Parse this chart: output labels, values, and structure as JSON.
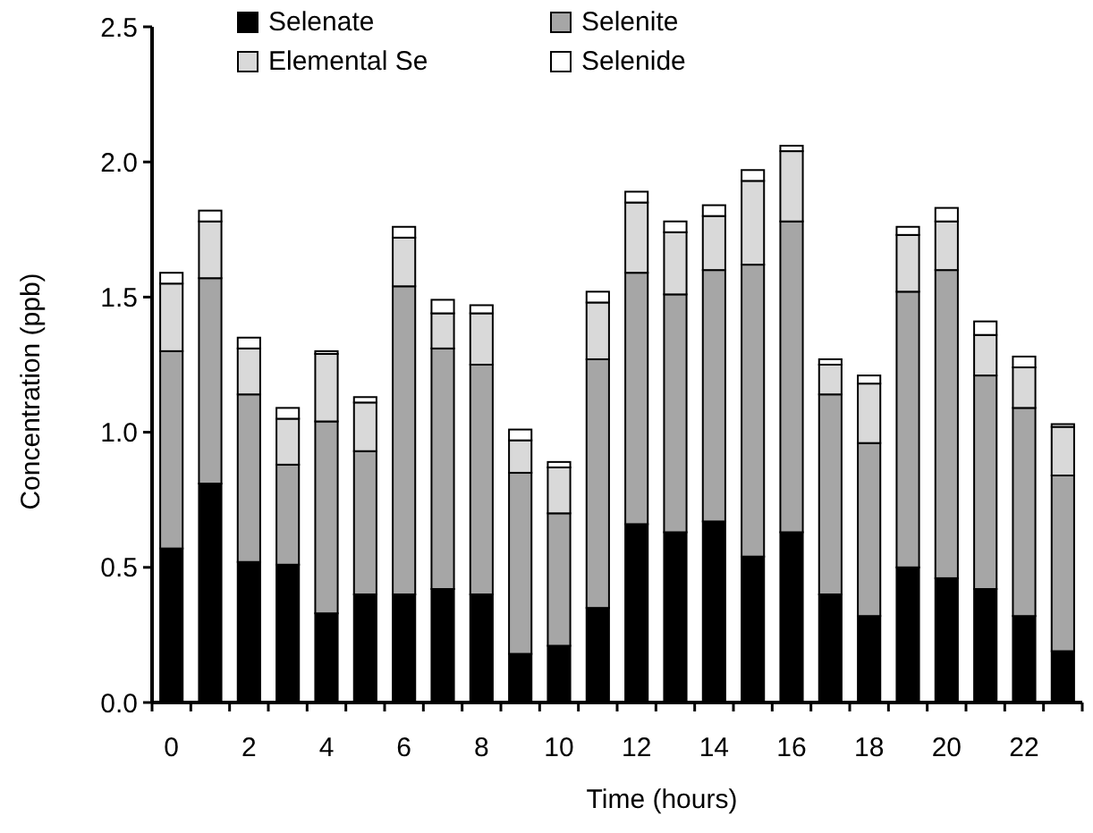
{
  "chart_data": {
    "type": "bar",
    "stacked": true,
    "xlabel": "Time (hours)",
    "ylabel": "Concentration (ppb)",
    "categories": [
      "0",
      null,
      "2",
      null,
      "4",
      null,
      "6",
      null,
      "8",
      null,
      "10",
      null,
      "12",
      null,
      "14",
      null,
      "16",
      null,
      "18",
      null,
      "20",
      null,
      "22",
      null
    ],
    "series": [
      {
        "name": "Selenate",
        "color": "#000000",
        "values": [
          0.57,
          0.81,
          0.52,
          0.51,
          0.33,
          0.4,
          0.4,
          0.42,
          0.4,
          0.18,
          0.21,
          0.35,
          0.66,
          0.63,
          0.67,
          0.54,
          0.63,
          0.4,
          0.32,
          0.5,
          0.46,
          0.42,
          0.32,
          0.19
        ]
      },
      {
        "name": "Selenite",
        "color": "#a6a6a6",
        "values": [
          0.73,
          0.76,
          0.62,
          0.37,
          0.71,
          0.53,
          1.14,
          0.89,
          0.85,
          0.67,
          0.49,
          0.92,
          0.93,
          0.88,
          0.93,
          1.08,
          1.15,
          0.74,
          0.64,
          1.02,
          1.14,
          0.79,
          0.77,
          0.65
        ]
      },
      {
        "name": "Elemental Se",
        "color": "#d9d9d9",
        "values": [
          0.25,
          0.21,
          0.17,
          0.17,
          0.25,
          0.18,
          0.18,
          0.13,
          0.19,
          0.12,
          0.17,
          0.21,
          0.26,
          0.23,
          0.2,
          0.31,
          0.26,
          0.11,
          0.22,
          0.21,
          0.18,
          0.15,
          0.15,
          0.18
        ]
      },
      {
        "name": "Selenide",
        "color": "#ffffff",
        "values": [
          0.04,
          0.04,
          0.04,
          0.04,
          0.01,
          0.02,
          0.04,
          0.05,
          0.03,
          0.04,
          0.02,
          0.04,
          0.04,
          0.04,
          0.04,
          0.04,
          0.02,
          0.02,
          0.03,
          0.03,
          0.05,
          0.05,
          0.04,
          0.01
        ]
      }
    ],
    "ylim": [
      0,
      2.5
    ],
    "yticks": [
      {
        "value": 0,
        "label": "0.0"
      },
      {
        "value": 0.5,
        "label": "0.5"
      },
      {
        "value": 1,
        "label": "1.0"
      },
      {
        "value": 1.5,
        "label": "1.5"
      },
      {
        "value": 2,
        "label": "2.0"
      },
      {
        "value": 2.5,
        "label": "2.5"
      }
    ],
    "legend": "top",
    "grid": false
  }
}
